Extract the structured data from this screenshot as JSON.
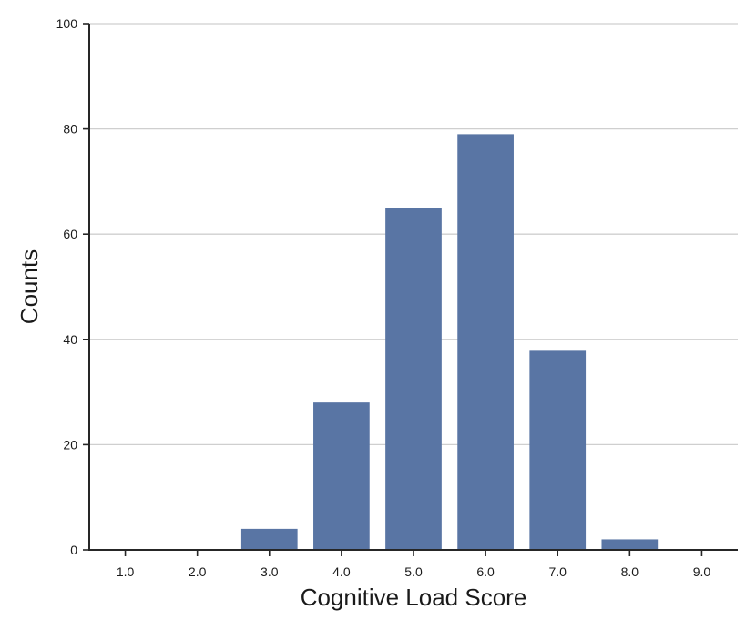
{
  "chart_data": {
    "type": "bar",
    "categories": [
      "1.0",
      "2.0",
      "3.0",
      "4.0",
      "5.0",
      "6.0",
      "7.0",
      "8.0",
      "9.0"
    ],
    "values": [
      0,
      0,
      4,
      28,
      65,
      79,
      38,
      2,
      0
    ],
    "xlabel": "Cognitive Load Score",
    "ylabel": "Counts",
    "ylim": [
      0,
      100
    ],
    "yticks": [
      0,
      20,
      40,
      60,
      80,
      100
    ],
    "grid": "horizontal",
    "bar_color": "#5975a4",
    "legend": "none"
  }
}
